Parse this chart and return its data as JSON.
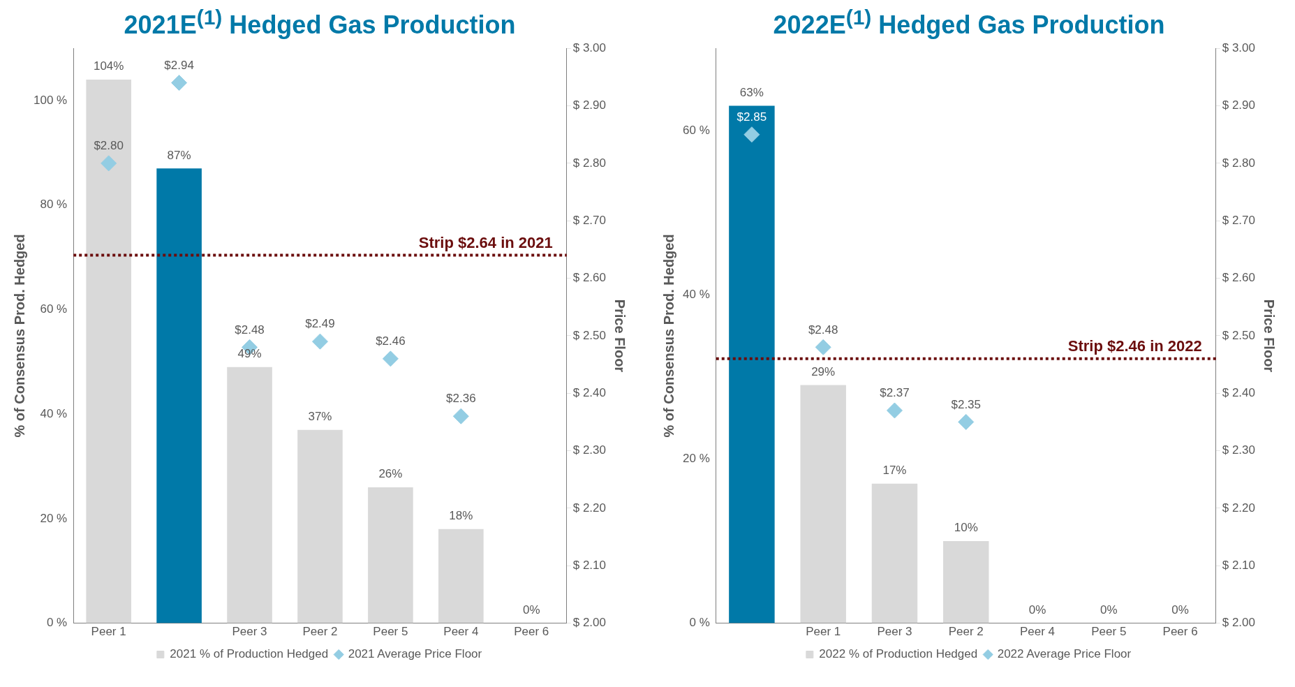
{
  "chart_data": [
    {
      "type": "bar",
      "title": "2021E$^{(1)}$ Hedged Gas Production",
      "ylabel": "% of Consensus Prod. Hedged",
      "y2label": "Price Floor",
      "categories": [
        "Peer 1",
        null,
        "Peer 3",
        "Peer 2",
        "Peer 5",
        "Peer 4",
        "Peer 6"
      ],
      "series": [
        {
          "name": "2021 % of Production Hedged",
          "color": "#d9d9d9",
          "colors": [
            "#d9d9d9",
            "#0079a8",
            "#d9d9d9",
            "#d9d9d9",
            "#d9d9d9",
            "#d9d9d9",
            "#d9d9d9"
          ],
          "values": [
            104,
            87,
            49,
            37,
            26,
            18,
            0
          ],
          "value_labels": [
            "104%",
            "87%",
            "49%",
            "37%",
            "26%",
            "18%",
            "0%"
          ]
        },
        {
          "name": "2021 Average Price Floor",
          "type": "scatter",
          "axis": "y2",
          "marker": "diamond",
          "color": "#93cde3",
          "values": [
            2.8,
            2.94,
            2.48,
            2.49,
            2.46,
            2.36,
            null
          ],
          "value_labels": [
            "$2.80",
            "$2.94",
            "$2.48",
            "$2.49",
            "$2.46",
            "$2.36",
            null
          ]
        }
      ],
      "ylim": [
        0,
        110
      ],
      "yticks": [
        {
          "value": 0,
          "label": "0 %"
        },
        {
          "value": 20,
          "label": "20 %"
        },
        {
          "value": 40,
          "label": "40 %"
        },
        {
          "value": 60,
          "label": "60 %"
        },
        {
          "value": 80,
          "label": "80 %"
        },
        {
          "value": 100,
          "label": "100 %"
        }
      ],
      "y2lim": [
        2.0,
        3.0
      ],
      "y2ticks": [
        {
          "value": 2.0,
          "label": "$ 2.00"
        },
        {
          "value": 2.1,
          "label": "$ 2.10"
        },
        {
          "value": 2.2,
          "label": "$ 2.20"
        },
        {
          "value": 2.3,
          "label": "$ 2.30"
        },
        {
          "value": 2.4,
          "label": "$ 2.40"
        },
        {
          "value": 2.5,
          "label": "$ 2.50"
        },
        {
          "value": 2.6,
          "label": "$ 2.60"
        },
        {
          "value": 2.7,
          "label": "$ 2.70"
        },
        {
          "value": 2.8,
          "label": "$ 2.80"
        },
        {
          "value": 2.9,
          "label": "$ 2.90"
        },
        {
          "value": 3.0,
          "label": "$ 3.00"
        }
      ],
      "ref_lines": [
        {
          "axis": "y2",
          "value": 2.64,
          "label": "Strip $2.64 in 2021",
          "color": "#6b0d0d",
          "line_style": "dotted"
        }
      ],
      "legend": "bottom",
      "grid": false
    },
    {
      "type": "bar",
      "title": "2022E$^{(1)}$ Hedged Gas Production",
      "ylabel": "% of Consensus Prod. Hedged",
      "y2label": "Price Floor",
      "categories": [
        null,
        "Peer 1",
        "Peer 3",
        "Peer 2",
        "Peer 4",
        "Peer 5",
        "Peer 6"
      ],
      "series": [
        {
          "name": "2022 % of Production Hedged",
          "color": "#d9d9d9",
          "colors": [
            "#0079a8",
            "#d9d9d9",
            "#d9d9d9",
            "#d9d9d9",
            "#d9d9d9",
            "#d9d9d9",
            "#d9d9d9"
          ],
          "values": [
            63,
            29,
            17,
            10,
            0,
            0,
            0
          ],
          "value_labels": [
            "63%",
            "29%",
            "17%",
            "10%",
            "0%",
            "0%",
            "0%"
          ]
        },
        {
          "name": "2022 Average Price Floor",
          "type": "scatter",
          "axis": "y2",
          "marker": "diamond",
          "color": "#93cde3",
          "values": [
            2.85,
            2.48,
            2.37,
            2.35,
            null,
            null,
            null
          ],
          "value_labels": [
            "$2.85",
            "$2.48",
            "$2.37",
            "$2.35",
            null,
            null,
            null
          ]
        }
      ],
      "ylim": [
        0,
        70
      ],
      "yticks": [
        {
          "value": 0,
          "label": "0 %"
        },
        {
          "value": 20,
          "label": "20 %"
        },
        {
          "value": 40,
          "label": "40 %"
        },
        {
          "value": 60,
          "label": "60 %"
        }
      ],
      "y2lim": [
        2.0,
        3.0
      ],
      "y2ticks": [
        {
          "value": 2.0,
          "label": "$ 2.00"
        },
        {
          "value": 2.1,
          "label": "$ 2.10"
        },
        {
          "value": 2.2,
          "label": "$ 2.20"
        },
        {
          "value": 2.3,
          "label": "$ 2.30"
        },
        {
          "value": 2.4,
          "label": "$ 2.40"
        },
        {
          "value": 2.5,
          "label": "$ 2.50"
        },
        {
          "value": 2.6,
          "label": "$ 2.60"
        },
        {
          "value": 2.7,
          "label": "$ 2.70"
        },
        {
          "value": 2.8,
          "label": "$ 2.80"
        },
        {
          "value": 2.9,
          "label": "$ 2.90"
        },
        {
          "value": 3.0,
          "label": "$ 3.00"
        }
      ],
      "ref_lines": [
        {
          "axis": "y2",
          "value": 2.46,
          "label": "Strip $2.46 in 2022",
          "color": "#6b0d0d",
          "line_style": "dotted"
        }
      ],
      "legend": "bottom",
      "grid": false
    }
  ]
}
